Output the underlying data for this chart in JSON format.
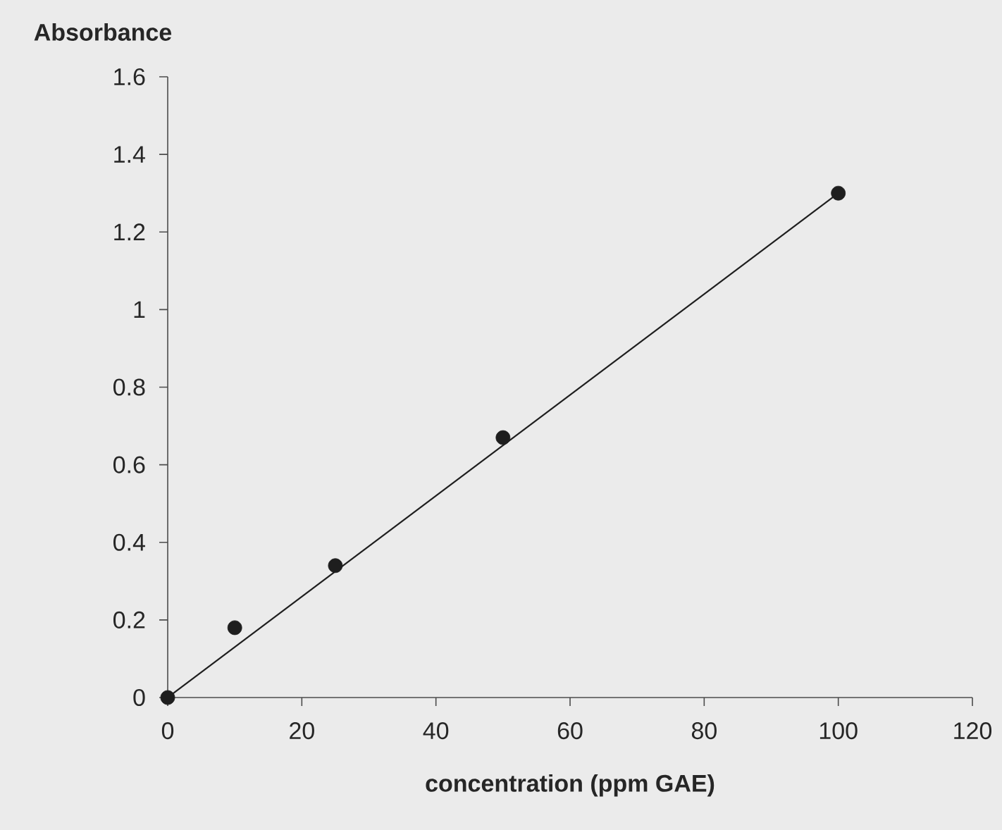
{
  "chart_data": {
    "type": "scatter",
    "xlabel": "concentration (ppm GAE)",
    "ylabel": "Absorbance",
    "xlim": [
      0,
      120
    ],
    "xticks": [
      0,
      20,
      40,
      60,
      80,
      100,
      120
    ],
    "ylim": [
      0,
      1.6
    ],
    "yticks": [
      0,
      0.2,
      0.4,
      0.6,
      0.8,
      1,
      1.2,
      1.4,
      1.6
    ],
    "grid": false,
    "series": [
      {
        "color": "#1e1e1e",
        "marker": "circle",
        "x": [
          0,
          10,
          25,
          50,
          100
        ],
        "values": [
          0,
          0.18,
          0.34,
          0.67,
          1.3
        ]
      },
      {
        "type": "line",
        "color": "#1e1e1e",
        "marker": "none",
        "line_style": "solid",
        "x": [
          0,
          100
        ],
        "values": [
          0,
          1.3
        ]
      }
    ]
  }
}
